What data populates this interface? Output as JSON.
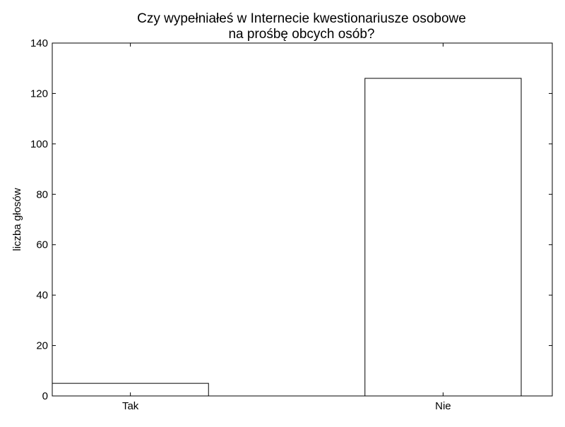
{
  "chart_data": {
    "type": "bar",
    "title_lines": [
      "Czy wypełniałeś w Internecie kwestionariusze osobowe",
      "na prośbę obcych osób?"
    ],
    "xlabel": "",
    "ylabel": "liczba głosów",
    "categories": [
      "Tak",
      "Nie"
    ],
    "values": [
      5,
      126
    ],
    "ylim": [
      0,
      140
    ],
    "yticks": [
      0,
      20,
      40,
      60,
      80,
      100,
      120,
      140
    ],
    "grid": false,
    "legend": "none",
    "bar_fill": "#ffffff",
    "bar_edge": "#000000"
  }
}
